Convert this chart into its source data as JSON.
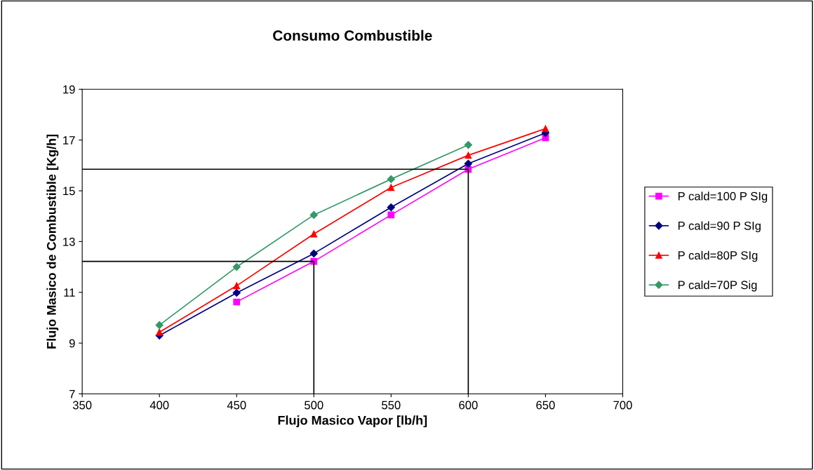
{
  "chart_data": {
    "type": "line",
    "title": "Consumo Combustible",
    "xlabel": "Flujo Masico Vapor [lb/h]",
    "ylabel": "Flujo Masico de Combustible [Kg/h]",
    "x": [
      400,
      450,
      500,
      550,
      600,
      650
    ],
    "series": [
      {
        "name": "P cald=100 P SIg",
        "color": "#ff00ff",
        "marker": "square",
        "values": [
          null,
          10.62,
          12.22,
          14.05,
          15.85,
          17.09
        ]
      },
      {
        "name": "P cald=90 P SIg",
        "color": "#000080",
        "marker": "diamond",
        "values": [
          9.3,
          10.98,
          12.53,
          14.35,
          16.07,
          17.28
        ]
      },
      {
        "name": "P cald=80P SIg",
        "color": "#ff0000",
        "marker": "triangle",
        "values": [
          9.43,
          11.26,
          13.3,
          15.13,
          16.4,
          17.45
        ]
      },
      {
        "name": "P cald=70P Sig",
        "color": "#339966",
        "marker": "diamond",
        "values": [
          9.71,
          12.0,
          14.05,
          15.46,
          16.81,
          null
        ]
      },
      {
        "type": "line",
        "color": "#000000",
        "marker": "none",
        "x": [
          350,
          500,
          500
        ],
        "values": [
          12.22,
          12.22,
          7
        ]
      },
      {
        "type": "line",
        "color": "#000000",
        "marker": "none",
        "x": [
          350,
          600,
          600
        ],
        "values": [
          15.85,
          15.85,
          7
        ]
      }
    ],
    "xlim": [
      350,
      700
    ],
    "xticks": [
      350,
      400,
      450,
      500,
      550,
      600,
      650,
      700
    ],
    "ylim": [
      7,
      19
    ],
    "yticks": [
      7,
      9,
      11,
      13,
      15,
      17,
      19
    ],
    "grid": false,
    "legend": "right",
    "line_style": "solid"
  }
}
